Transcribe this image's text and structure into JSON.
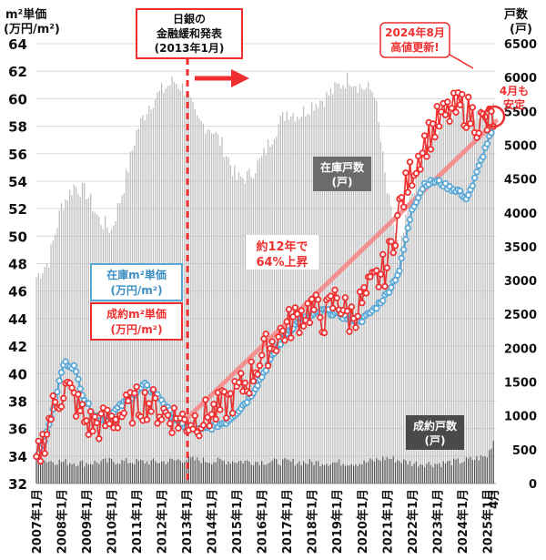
{
  "chart_data": {
    "type": "line",
    "left_axis_title_line1": "m²単価",
    "left_axis_title_line2": "(万円/m²)",
    "right_axis_title_line1": "戸数",
    "right_axis_title_line2": "(戸)",
    "left_axis": {
      "min": 32,
      "max": 64,
      "ticks": [
        "32",
        "34",
        "36",
        "38",
        "40",
        "42",
        "44",
        "46",
        "48",
        "50",
        "52",
        "54",
        "56",
        "58",
        "60",
        "62",
        "64"
      ]
    },
    "right_axis": {
      "min": 0,
      "max": 6500,
      "ticks": [
        "0",
        "500",
        "1000",
        "1500",
        "2000",
        "2500",
        "3000",
        "3500",
        "4000",
        "4500",
        "5000",
        "5500",
        "6000",
        "6500"
      ]
    },
    "x_tick_labels": [
      "2007年1月",
      "2008年1月",
      "2009年1月",
      "2010年1月",
      "2011年1月",
      "2012年1月",
      "2013年1月",
      "2014年1月",
      "2015年1月",
      "2016年1月",
      "2017年1月",
      "2018年1月",
      "2019年1月",
      "2020年1月",
      "2021年1月",
      "2022年1月",
      "2023年1月",
      "2024年1月",
      "2025年1月",
      "4月"
    ],
    "grid": "horizontal",
    "series": [
      {
        "name": "在庫m²単価",
        "axis": "left",
        "style": "line-markers",
        "color": "#5aa7d6",
        "anchors": [
          [
            2007.0,
            34.0
          ],
          [
            2007.4,
            35.5
          ],
          [
            2007.8,
            38.5
          ],
          [
            2008.1,
            40.8
          ],
          [
            2008.5,
            40.5
          ],
          [
            2008.9,
            38.2
          ],
          [
            2009.3,
            37.0
          ],
          [
            2009.8,
            36.6
          ],
          [
            2010.2,
            37.4
          ],
          [
            2010.6,
            38.0
          ],
          [
            2011.0,
            38.6
          ],
          [
            2011.3,
            39.2
          ],
          [
            2011.7,
            38.6
          ],
          [
            2012.0,
            38.1
          ],
          [
            2012.4,
            37.0
          ],
          [
            2012.8,
            36.3
          ],
          [
            2013.2,
            35.9
          ],
          [
            2013.6,
            35.9
          ],
          [
            2014.0,
            36.1
          ],
          [
            2014.6,
            36.5
          ],
          [
            2015.0,
            37.2
          ],
          [
            2015.5,
            38.2
          ],
          [
            2016.0,
            39.8
          ],
          [
            2016.5,
            41.5
          ],
          [
            2017.0,
            43.0
          ],
          [
            2017.5,
            43.8
          ],
          [
            2018.0,
            44.2
          ],
          [
            2018.5,
            44.6
          ],
          [
            2019.0,
            44.3
          ],
          [
            2019.5,
            44.0
          ],
          [
            2020.0,
            43.9
          ],
          [
            2020.5,
            44.7
          ],
          [
            2021.0,
            45.8
          ],
          [
            2021.5,
            47.5
          ],
          [
            2022.0,
            52.0
          ],
          [
            2022.5,
            53.8
          ],
          [
            2023.0,
            54.0
          ],
          [
            2023.5,
            53.5
          ],
          [
            2023.9,
            53.3
          ],
          [
            2024.1,
            52.6
          ],
          [
            2024.4,
            53.6
          ],
          [
            2024.7,
            55.2
          ],
          [
            2025.0,
            56.8
          ],
          [
            2025.25,
            57.8
          ]
        ]
      },
      {
        "name": "成約m²単価",
        "axis": "left",
        "style": "line-markers",
        "color": "#ef2f2f",
        "anchors": [
          [
            2007.0,
            33.5
          ],
          [
            2007.3,
            35.2
          ],
          [
            2007.6,
            37.2
          ],
          [
            2007.9,
            38.3
          ],
          [
            2008.2,
            39.0
          ],
          [
            2008.6,
            37.8
          ],
          [
            2009.0,
            36.4
          ],
          [
            2009.5,
            36.3
          ],
          [
            2010.0,
            36.6
          ],
          [
            2010.5,
            37.2
          ],
          [
            2011.0,
            37.8
          ],
          [
            2011.5,
            37.9
          ],
          [
            2012.0,
            37.2
          ],
          [
            2012.5,
            36.8
          ],
          [
            2013.0,
            36.5
          ],
          [
            2013.5,
            36.7
          ],
          [
            2014.0,
            37.1
          ],
          [
            2014.5,
            37.6
          ],
          [
            2015.0,
            38.6
          ],
          [
            2015.5,
            39.6
          ],
          [
            2016.0,
            41.3
          ],
          [
            2016.5,
            42.4
          ],
          [
            2017.0,
            43.4
          ],
          [
            2017.5,
            44.2
          ],
          [
            2018.0,
            44.8
          ],
          [
            2018.5,
            44.0
          ],
          [
            2019.0,
            45.6
          ],
          [
            2019.5,
            44.0
          ],
          [
            2020.0,
            45.2
          ],
          [
            2020.5,
            46.6
          ],
          [
            2021.0,
            47.8
          ],
          [
            2021.5,
            52.0
          ],
          [
            2022.0,
            54.8
          ],
          [
            2022.5,
            56.8
          ],
          [
            2023.0,
            58.2
          ],
          [
            2023.5,
            59.0
          ],
          [
            2024.0,
            59.4
          ],
          [
            2024.6,
            58.4
          ],
          [
            2025.0,
            58.1
          ],
          [
            2025.25,
            58.6
          ]
        ]
      },
      {
        "name": "在庫戸数",
        "axis": "right",
        "style": "bars",
        "color": "#bdbdbd",
        "anchors": [
          [
            2007.0,
            3050
          ],
          [
            2007.5,
            3300
          ],
          [
            2008.0,
            4100
          ],
          [
            2008.5,
            4400
          ],
          [
            2009.0,
            4300
          ],
          [
            2009.5,
            3900
          ],
          [
            2010.0,
            3750
          ],
          [
            2010.5,
            4400
          ],
          [
            2011.0,
            5200
          ],
          [
            2011.5,
            5600
          ],
          [
            2012.0,
            5800
          ],
          [
            2012.5,
            5950
          ],
          [
            2013.0,
            5800
          ],
          [
            2013.4,
            5350
          ],
          [
            2014.0,
            5250
          ],
          [
            2014.5,
            4950
          ],
          [
            2015.0,
            4500
          ],
          [
            2015.5,
            4550
          ],
          [
            2016.0,
            4800
          ],
          [
            2016.5,
            5200
          ],
          [
            2017.0,
            5500
          ],
          [
            2017.5,
            5450
          ],
          [
            2018.0,
            5600
          ],
          [
            2018.5,
            5700
          ],
          [
            2019.0,
            5850
          ],
          [
            2019.5,
            6000
          ],
          [
            2020.0,
            5850
          ],
          [
            2020.5,
            5800
          ],
          [
            2021.0,
            4300
          ],
          [
            2021.5,
            3400
          ],
          [
            2022.0,
            4300
          ],
          [
            2022.5,
            4900
          ],
          [
            2023.0,
            5200
          ],
          [
            2023.5,
            5450
          ],
          [
            2024.0,
            5650
          ],
          [
            2024.5,
            5450
          ],
          [
            2025.0,
            5450
          ],
          [
            2025.25,
            5650
          ]
        ]
      },
      {
        "name": "成約戸数",
        "axis": "right",
        "style": "bars",
        "color": "#555555",
        "anchors": [
          [
            2007.0,
            350
          ],
          [
            2008.0,
            320
          ],
          [
            2009.0,
            300
          ],
          [
            2010.0,
            330
          ],
          [
            2011.0,
            320
          ],
          [
            2012.0,
            320
          ],
          [
            2013.0,
            360
          ],
          [
            2014.0,
            330
          ],
          [
            2015.0,
            330
          ],
          [
            2016.0,
            320
          ],
          [
            2017.0,
            320
          ],
          [
            2018.0,
            310
          ],
          [
            2019.0,
            310
          ],
          [
            2020.0,
            300
          ],
          [
            2021.0,
            380
          ],
          [
            2022.0,
            300
          ],
          [
            2023.0,
            290
          ],
          [
            2024.0,
            330
          ],
          [
            2025.0,
            400
          ],
          [
            2025.25,
            640
          ]
        ]
      }
    ]
  },
  "annotations": {
    "boj_line1": "日銀の",
    "boj_line2": "金融緩和発表",
    "boj_line3": "(2013年1月)",
    "record_line1": "2024年8月",
    "record_line2": "高値更新!",
    "stable_line1": "4月も",
    "stable_line2": "安定",
    "growth_line1": "約12年で",
    "growth_line2": "64%上昇",
    "inventory_units_line1": "在庫戸数",
    "inventory_units_line2": "(戸)",
    "contract_units_line1": "成約戸数",
    "contract_units_line2": "(戸)",
    "inventory_price_line1": "在庫m²単価",
    "inventory_price_line2": "(万円/m²)",
    "contract_price_line1": "成約m²単価",
    "contract_price_line2": "(万円/m²)"
  },
  "colors": {
    "red": "#ef2f2f",
    "blue": "#5aa7d6",
    "gray_bar": "#bdbdbd",
    "dark_bar": "#555555",
    "dark_label": "#6b6b6b"
  }
}
